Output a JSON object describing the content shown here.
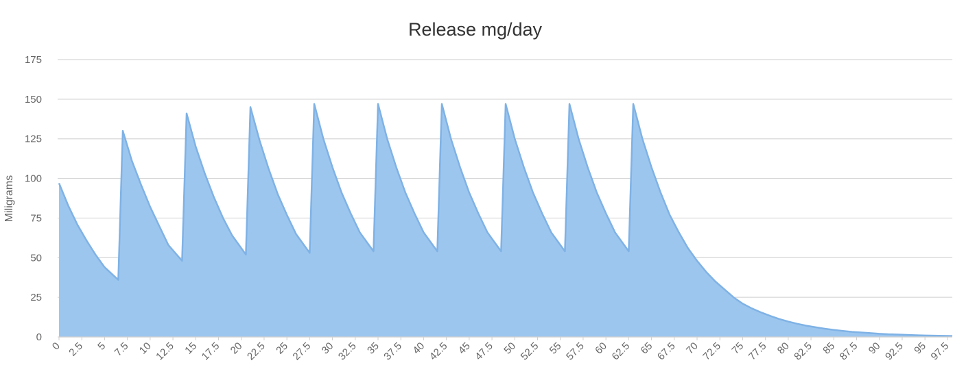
{
  "chart_data": {
    "type": "area",
    "title": "Release mg/day",
    "xlabel": "",
    "ylabel": "Miligrams",
    "xlim": [
      0,
      98
    ],
    "ylim": [
      0,
      175
    ],
    "y_ticks": [
      0,
      25,
      50,
      75,
      100,
      125,
      150,
      175
    ],
    "x_ticks": [
      0,
      2.5,
      5,
      7.5,
      10,
      12.5,
      15,
      17.5,
      20,
      22.5,
      25,
      27.5,
      30,
      32.5,
      35,
      37.5,
      40,
      42.5,
      45,
      47.5,
      50,
      52.5,
      55,
      57.5,
      60,
      62.5,
      65,
      67.5,
      70,
      72.5,
      75,
      77.5,
      80,
      82.5,
      85,
      87.5,
      90,
      92.5,
      95,
      97.5
    ],
    "grid": true,
    "legend": "none",
    "color": "#7fb2e5",
    "fill_color": "#9dc6ef",
    "series": [
      {
        "values": [
          [
            0,
            97
          ],
          [
            1,
            83
          ],
          [
            2,
            71
          ],
          [
            3,
            61
          ],
          [
            4,
            52
          ],
          [
            5,
            44
          ],
          [
            6.5,
            36
          ],
          [
            7,
            130
          ],
          [
            8,
            111
          ],
          [
            9,
            96
          ],
          [
            10,
            82
          ],
          [
            11,
            70
          ],
          [
            12,
            58
          ],
          [
            13.5,
            48
          ],
          [
            14,
            141
          ],
          [
            15,
            120
          ],
          [
            16,
            103
          ],
          [
            17,
            88
          ],
          [
            18,
            75
          ],
          [
            19,
            64
          ],
          [
            20.5,
            52
          ],
          [
            21,
            145
          ],
          [
            22,
            124
          ],
          [
            23,
            106
          ],
          [
            24,
            90
          ],
          [
            25,
            77
          ],
          [
            26,
            65
          ],
          [
            27.5,
            53
          ],
          [
            28,
            147
          ],
          [
            29,
            125
          ],
          [
            30,
            107
          ],
          [
            31,
            91
          ],
          [
            32,
            78
          ],
          [
            33,
            66
          ],
          [
            34.5,
            54
          ],
          [
            35,
            147
          ],
          [
            36,
            125
          ],
          [
            37,
            107
          ],
          [
            38,
            91
          ],
          [
            39,
            78
          ],
          [
            40,
            66
          ],
          [
            41.5,
            54
          ],
          [
            42,
            147
          ],
          [
            43,
            125
          ],
          [
            44,
            107
          ],
          [
            45,
            91
          ],
          [
            46,
            78
          ],
          [
            47,
            66
          ],
          [
            48.5,
            54
          ],
          [
            49,
            147
          ],
          [
            50,
            125
          ],
          [
            51,
            107
          ],
          [
            52,
            91
          ],
          [
            53,
            78
          ],
          [
            54,
            66
          ],
          [
            55.5,
            54
          ],
          [
            56,
            147
          ],
          [
            57,
            125
          ],
          [
            58,
            107
          ],
          [
            59,
            91
          ],
          [
            60,
            78
          ],
          [
            61,
            66
          ],
          [
            62.5,
            54
          ],
          [
            63,
            147
          ],
          [
            64,
            125
          ],
          [
            65,
            107
          ],
          [
            66,
            91
          ],
          [
            67,
            77
          ],
          [
            68,
            66
          ],
          [
            69,
            56
          ],
          [
            70,
            48
          ],
          [
            71,
            41
          ],
          [
            72,
            35
          ],
          [
            73,
            30
          ],
          [
            74,
            25
          ],
          [
            75,
            21
          ],
          [
            76,
            18
          ],
          [
            77,
            15.5
          ],
          [
            78,
            13.3
          ],
          [
            79,
            11.3
          ],
          [
            80,
            9.7
          ],
          [
            81,
            8.3
          ],
          [
            82,
            7.1
          ],
          [
            83,
            6.1
          ],
          [
            84,
            5.2
          ],
          [
            85,
            4.4
          ],
          [
            86,
            3.8
          ],
          [
            87,
            3.2
          ],
          [
            88,
            2.8
          ],
          [
            89,
            2.4
          ],
          [
            90,
            2.0
          ],
          [
            91,
            1.7
          ],
          [
            92,
            1.5
          ],
          [
            93,
            1.3
          ],
          [
            94,
            1.1
          ],
          [
            95,
            0.9
          ],
          [
            96,
            0.8
          ],
          [
            97,
            0.7
          ],
          [
            98,
            0.6
          ]
        ]
      }
    ]
  }
}
